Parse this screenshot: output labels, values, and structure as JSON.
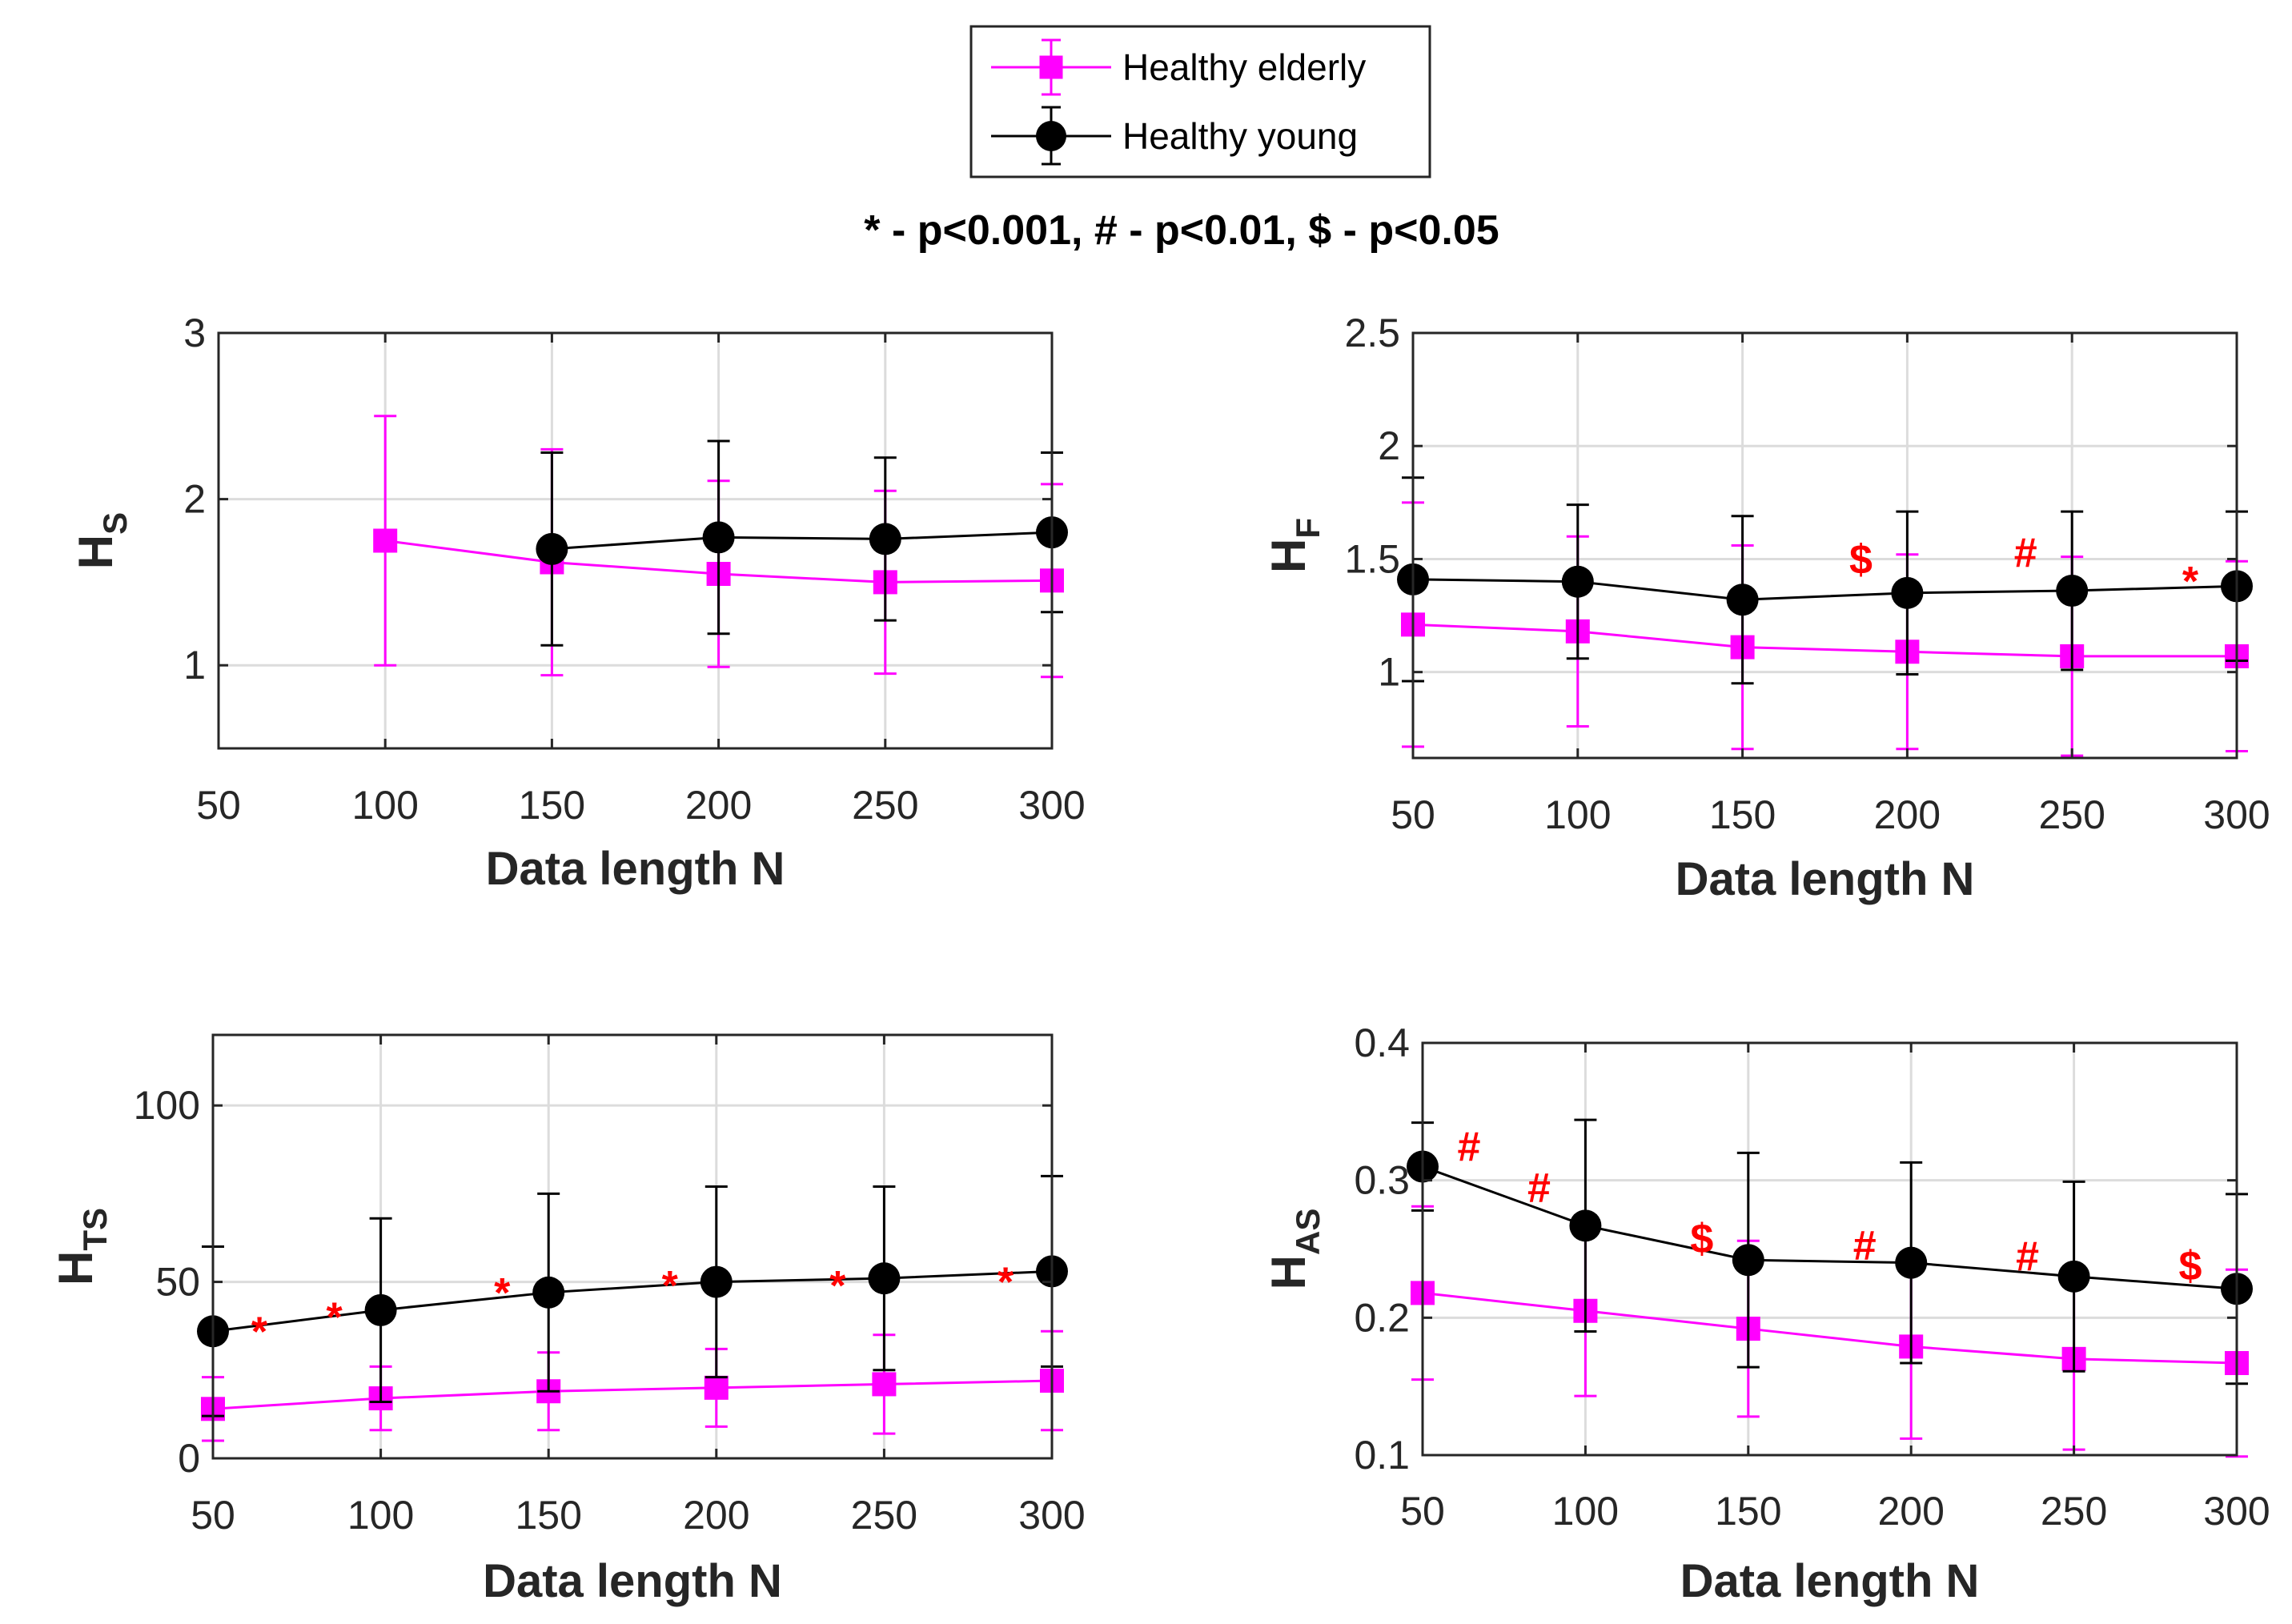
{
  "legend": {
    "entries": [
      {
        "name": "Healthy elderly",
        "color": "#ff00ff",
        "marker": "square"
      },
      {
        "name": "Healthy young",
        "color": "#000000",
        "marker": "circle"
      }
    ]
  },
  "significance_caption": "* - p<0.001, # - p<0.01, $ - p<0.05",
  "chart_data": [
    {
      "id": "hs",
      "type": "line",
      "ylabel_main": "H",
      "ylabel_sub": "S",
      "xlabel": "Data length N",
      "xlim": [
        50,
        300
      ],
      "ylim": [
        0.5,
        3
      ],
      "xticks": [
        50,
        100,
        150,
        200,
        250,
        300
      ],
      "yticks": [
        1,
        2,
        3
      ],
      "grid": true,
      "series": [
        {
          "name": "Healthy elderly",
          "x": [
            100,
            150,
            200,
            250,
            300
          ],
          "y": [
            1.75,
            1.62,
            1.55,
            1.5,
            1.51
          ],
          "err": [
            0.75,
            0.68,
            0.56,
            0.55,
            0.58
          ]
        },
        {
          "name": "Healthy young",
          "x": [
            150,
            200,
            250,
            300
          ],
          "y": [
            1.7,
            1.77,
            1.76,
            1.8
          ],
          "err": [
            0.58,
            0.58,
            0.49,
            0.48
          ]
        }
      ],
      "annotations": []
    },
    {
      "id": "hf",
      "type": "line",
      "ylabel_main": "H",
      "ylabel_sub": "F",
      "xlabel": "Data length N",
      "xlim": [
        50,
        300
      ],
      "ylim": [
        0.62,
        2.5
      ],
      "xticks": [
        50,
        100,
        150,
        200,
        250,
        300
      ],
      "yticks": [
        1,
        1.5,
        2,
        2.5
      ],
      "grid": true,
      "series": [
        {
          "name": "Healthy elderly",
          "x": [
            50,
            100,
            150,
            200,
            250,
            300
          ],
          "y": [
            1.21,
            1.18,
            1.11,
            1.09,
            1.07,
            1.07
          ],
          "err": [
            0.54,
            0.42,
            0.45,
            0.43,
            0.44,
            0.42
          ]
        },
        {
          "name": "Healthy young",
          "x": [
            50,
            100,
            150,
            200,
            250,
            300
          ],
          "y": [
            1.41,
            1.4,
            1.32,
            1.35,
            1.36,
            1.38
          ],
          "err": [
            0.45,
            0.34,
            0.37,
            0.36,
            0.35,
            0.33
          ]
        }
      ],
      "annotations": [
        {
          "x": 200,
          "y": 1.5,
          "text": "$",
          "offset": "left"
        },
        {
          "x": 250,
          "y": 1.53,
          "text": "#",
          "offset": "left"
        },
        {
          "x": 300,
          "y": 1.48,
          "text": "*",
          "offset": "left"
        }
      ]
    },
    {
      "id": "hts",
      "type": "line",
      "ylabel_main": "H",
      "ylabel_sub": "TS",
      "xlabel": "Data length N",
      "xlim": [
        50,
        300
      ],
      "ylim": [
        0,
        120
      ],
      "xticks": [
        50,
        100,
        150,
        200,
        250,
        300
      ],
      "yticks": [
        0,
        50,
        100
      ],
      "grid": true,
      "series": [
        {
          "name": "Healthy elderly",
          "x": [
            50,
            100,
            150,
            200,
            250,
            300
          ],
          "y": [
            14,
            17,
            19,
            20,
            21,
            22
          ],
          "err": [
            9,
            9,
            11,
            11,
            14,
            14
          ]
        },
        {
          "name": "Healthy young",
          "x": [
            50,
            100,
            150,
            200,
            250,
            300
          ],
          "y": [
            36,
            42,
            47,
            50,
            51,
            53
          ],
          "err": [
            24,
            26,
            28,
            27,
            26,
            27
          ]
        }
      ],
      "annotations": [
        {
          "x": 50,
          "y": 41,
          "text": "*",
          "offset": "right"
        },
        {
          "x": 100,
          "y": 45,
          "text": "*",
          "offset": "left"
        },
        {
          "x": 150,
          "y": 52,
          "text": "*",
          "offset": "left"
        },
        {
          "x": 200,
          "y": 54,
          "text": "*",
          "offset": "left"
        },
        {
          "x": 250,
          "y": 54,
          "text": "*",
          "offset": "left"
        },
        {
          "x": 300,
          "y": 55,
          "text": "*",
          "offset": "left"
        }
      ]
    },
    {
      "id": "has",
      "type": "line",
      "ylabel_main": "H",
      "ylabel_sub": "AS",
      "xlabel": "Data length N",
      "xlim": [
        50,
        300
      ],
      "ylim": [
        0.1,
        0.4
      ],
      "xticks": [
        50,
        100,
        150,
        200,
        250,
        300
      ],
      "yticks": [
        0.1,
        0.2,
        0.3,
        0.4
      ],
      "grid": true,
      "series": [
        {
          "name": "Healthy elderly",
          "x": [
            50,
            100,
            150,
            200,
            250,
            300
          ],
          "y": [
            0.218,
            0.205,
            0.192,
            0.179,
            0.17,
            0.167
          ],
          "err": [
            0.063,
            0.062,
            0.064,
            0.067,
            0.066,
            0.068
          ]
        },
        {
          "name": "Healthy young",
          "x": [
            50,
            100,
            150,
            200,
            250,
            300
          ],
          "y": [
            0.31,
            0.267,
            0.242,
            0.24,
            0.23,
            0.221
          ],
          "err": [
            0.032,
            0.077,
            0.078,
            0.073,
            0.069,
            0.069
          ]
        }
      ],
      "annotations": [
        {
          "x": 50,
          "y": 0.325,
          "text": "#",
          "offset": "right"
        },
        {
          "x": 100,
          "y": 0.295,
          "text": "#",
          "offset": "left"
        },
        {
          "x": 150,
          "y": 0.258,
          "text": "$",
          "offset": "left"
        },
        {
          "x": 200,
          "y": 0.253,
          "text": "#",
          "offset": "left"
        },
        {
          "x": 250,
          "y": 0.245,
          "text": "#",
          "offset": "left"
        },
        {
          "x": 300,
          "y": 0.238,
          "text": "$",
          "offset": "left"
        }
      ]
    }
  ]
}
